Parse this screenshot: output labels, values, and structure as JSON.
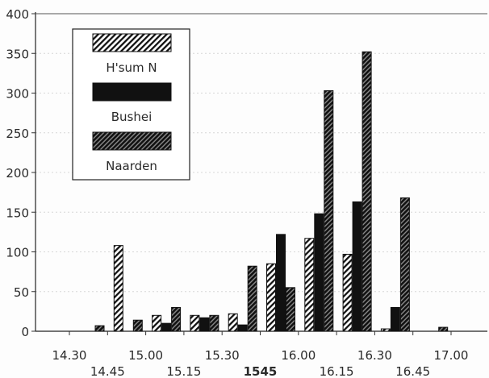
{
  "chart_data": {
    "type": "bar",
    "title": "",
    "xlabel": "",
    "ylabel": "",
    "ylim": [
      0,
      400
    ],
    "yticks": [
      0,
      50,
      100,
      150,
      200,
      250,
      300,
      350,
      400
    ],
    "grid": "faint horizontal",
    "legend_position": "top-left",
    "x_tick_labels": [
      {
        "label": "14.30",
        "row": "upper"
      },
      {
        "label": "14.45",
        "row": "lower"
      },
      {
        "label": "15.00",
        "row": "upper"
      },
      {
        "label": "15.15",
        "row": "lower"
      },
      {
        "label": "15.30",
        "row": "upper"
      },
      {
        "label": "1545",
        "row": "lower",
        "bold": true
      },
      {
        "label": "16.00",
        "row": "upper"
      },
      {
        "label": "16.15",
        "row": "lower"
      },
      {
        "label": "16.30",
        "row": "upper"
      },
      {
        "label": "16.45",
        "row": "lower"
      },
      {
        "label": "17.00",
        "row": "upper"
      }
    ],
    "categories": [
      "14.30",
      "14.45",
      "15.00",
      "15.15",
      "15.30",
      "1545",
      "16.00",
      "16.15",
      "16.30",
      "16.45",
      "17.00"
    ],
    "series": [
      {
        "name": "H'sum N",
        "pattern": "light-hatch",
        "values": [
          0,
          108,
          20,
          20,
          22,
          85,
          117,
          97,
          3,
          0,
          0
        ]
      },
      {
        "name": "Bushei",
        "pattern": "solid-black",
        "values": [
          0,
          0,
          10,
          17,
          8,
          122,
          148,
          163,
          30,
          0,
          0
        ]
      },
      {
        "name": "Naarden",
        "pattern": "dark-hatch",
        "values": [
          7,
          14,
          30,
          20,
          82,
          55,
          303,
          352,
          168,
          5,
          0
        ]
      }
    ]
  }
}
